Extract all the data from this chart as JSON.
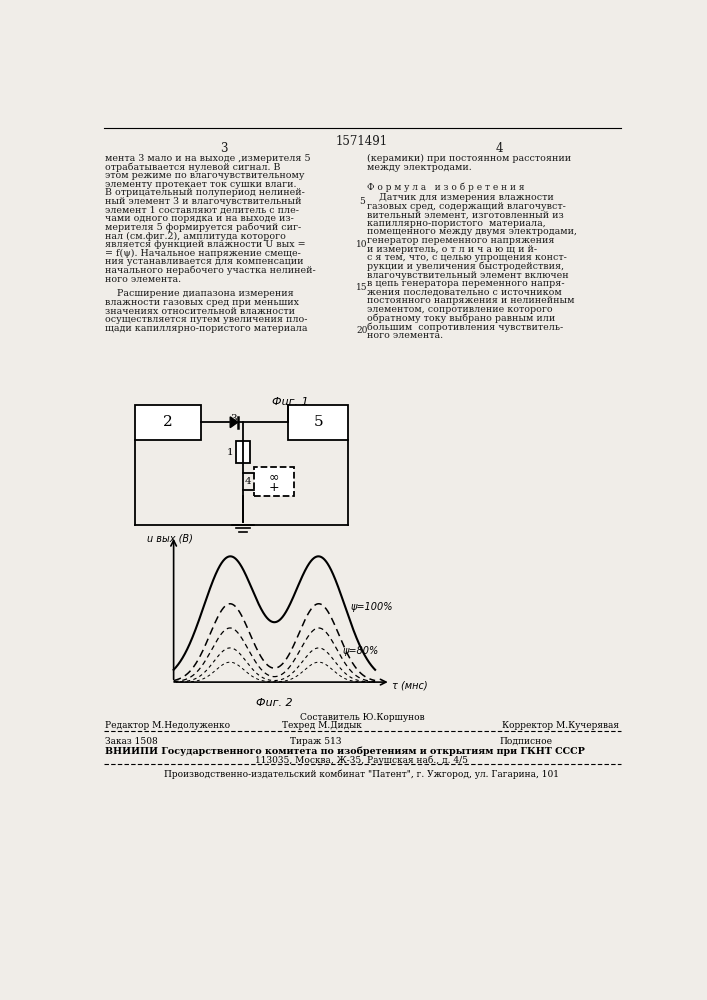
{
  "title_number": "1571491",
  "page_left": "3",
  "page_right": "4",
  "bg_color": "#f0ede8",
  "text_color": "#1a1a1a",
  "col_left_text": [
    "мента 3 мало и на выходе ,измерителя 5",
    "отрабатывается нулевой сигнал. В",
    "этом режиме по влагочувствительному",
    "элементу протекает ток сушки влаги.",
    "В отрицательный полупериод нелиней-",
    "ный элемент 3 и влагочувствительный",
    "элемент 1 составляют делитель с пле-",
    "чами одного порядка и на выходе из-",
    "мерителя 5 формируется рабочий сиг-",
    "нал (см.фиг.2), амплитуда которого",
    "является функцией влажности U вых =",
    "= f(ψ). Начальное напряжение смеще-",
    "ния устанавливается для компенсации",
    "начального нерабочего участка нелиней-",
    "ного элемента."
  ],
  "col_left_text2": [
    "    Расширение диапазона измерения",
    "влажности газовых сред при меньших",
    "значениях относительной влажности",
    "осуществляется путем увеличения пло-",
    "щади капиллярно-пористого материала"
  ],
  "col_right_text": [
    "(керамики) при постоянном расстоянии",
    "между электродами."
  ],
  "formula_header": "Ф о р м у л а   и з о б р е т е н и я",
  "formula_text": [
    "    Датчик для измерения влажности",
    "газовых сред, содержащий влагочувст-",
    "вительный элемент, изготовленный из",
    "капиллярно-пористого  материала,",
    "помещенного между двумя электродами,",
    "генератор переменного напряжения",
    "и измеритель, о т л и ч а ю щ и й-",
    "с я тем, что, с целью упрощения конст-",
    "рукции и увеличения быстродействия,",
    "влагочувствительный элемент включен",
    "в цепь генератора переменного напря-",
    "жения последовательно с источником",
    "постоянного напряжения и нелинейным",
    "элементом, сопротивление которого",
    "обратному току выбрано равным или",
    "большим  сопротивления чувствитель-",
    "ного элемента."
  ],
  "fig1_label": "Фuг. 1",
  "fig2_label": "Фuг. 2",
  "ylabel_label": "u вых (В)",
  "xlabel_label": "τ (мнс)",
  "psi100_label": "ψ=100%",
  "psi80_label": "ψ=80%",
  "footer_left": "Редактор М.Недолуженко",
  "footer_center": "Составитель Ю.Коршунов",
  "footer_right": "Корректор М.Кучерявая",
  "footer2_center": "Техред М.Дидык",
  "footer_order": "Заказ 1508",
  "footer_tirazh": "Тираж 513",
  "footer_podpis": "Подписное",
  "footer_vnipi": "ВНИИПИ Государственного комитета по изобретениям и открытиям при ГКНТ СССР",
  "footer_address": "113035, Москва, Ж-35, Раушская наб., д. 4/5",
  "footer_factory": "Производственно-издательский комбинат \"Патент\", г. Ужгород, ул. Гагарина, 101"
}
